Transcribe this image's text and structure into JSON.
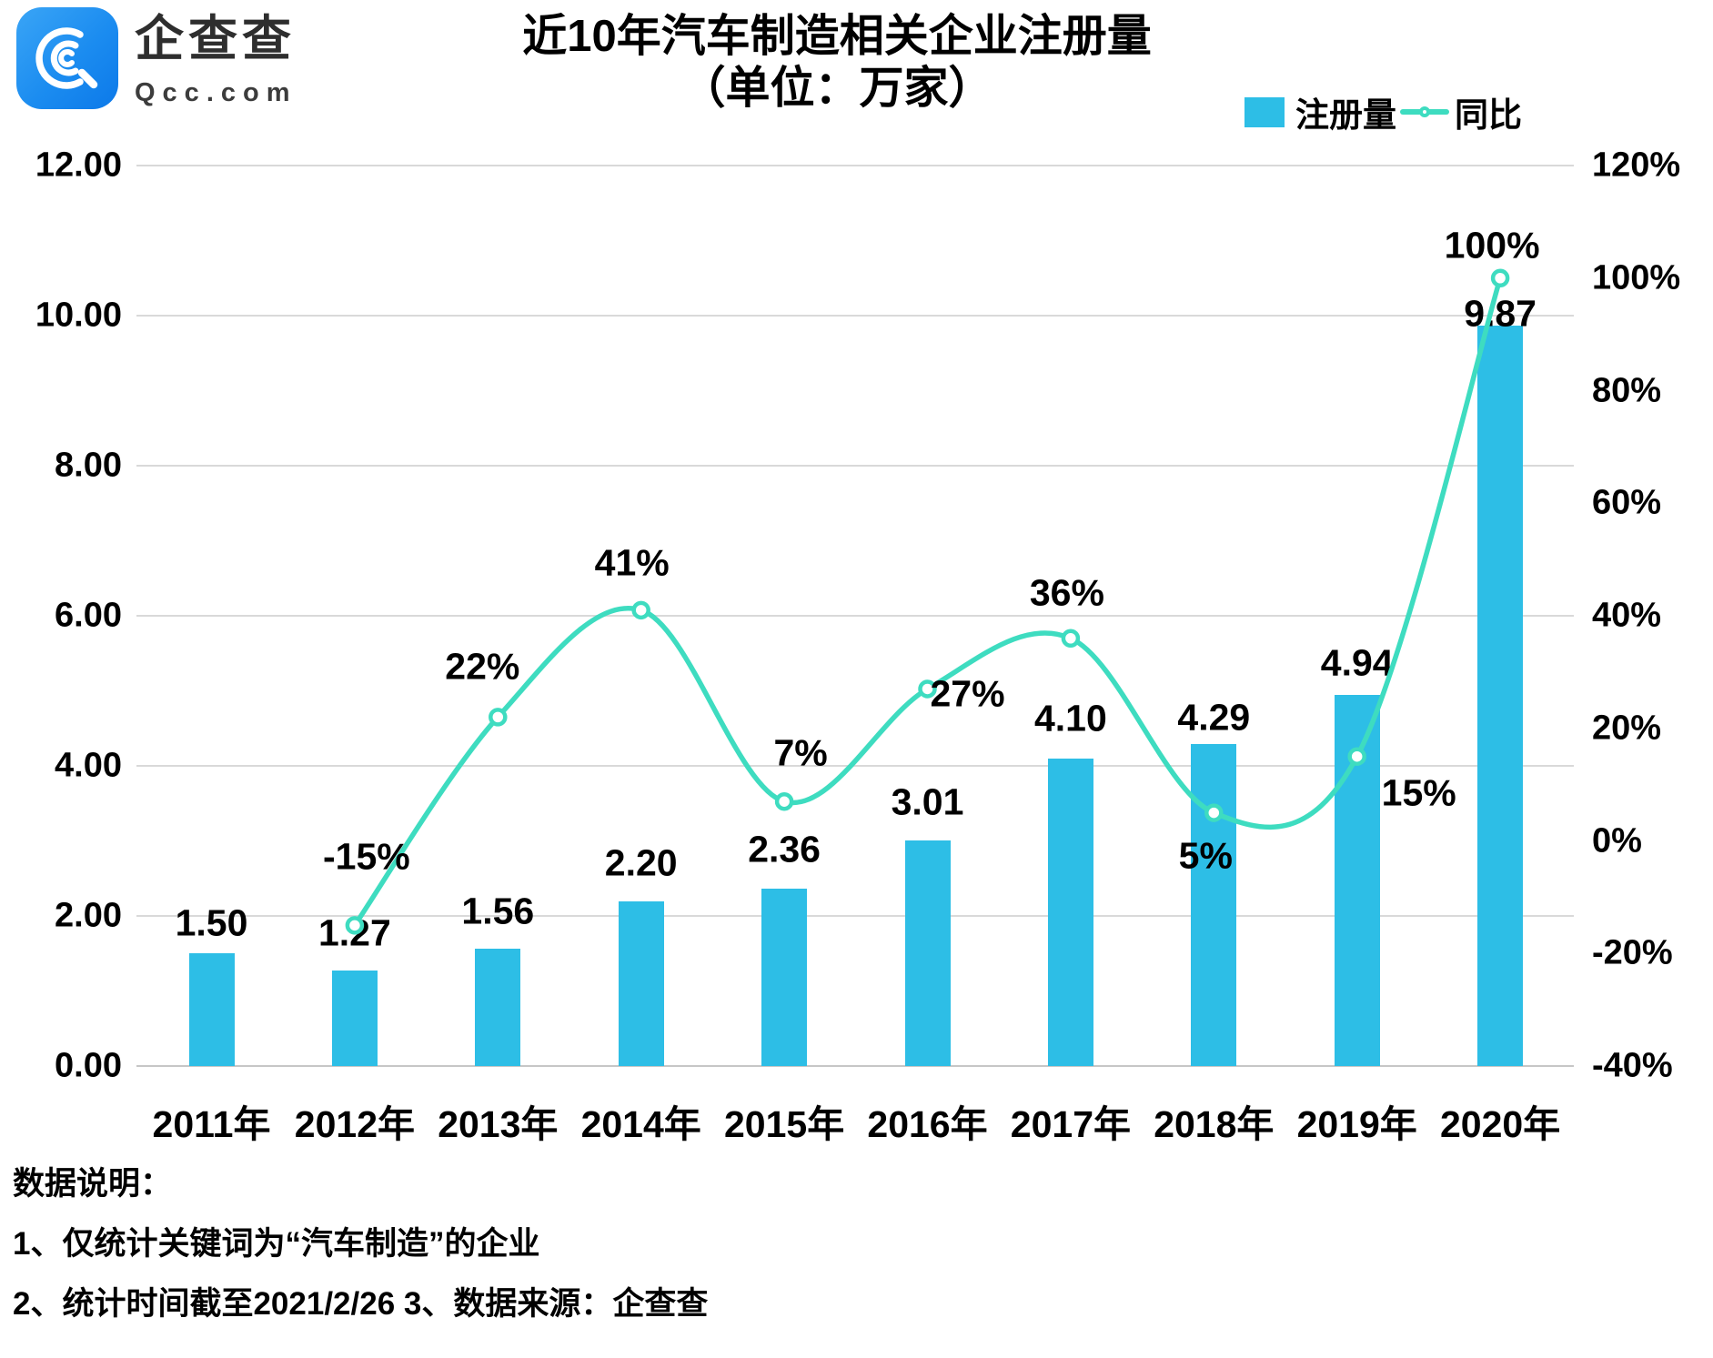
{
  "logo": {
    "brand_cn": "企查查",
    "brand_en": "Qcc.com"
  },
  "title": {
    "line1": "近10年汽车制造相关企业注册量",
    "line2": "（单位：万家）"
  },
  "notes": {
    "heading": "数据说明：",
    "line1": "1、仅统计关键词为“汽车制造”的企业",
    "line2": "2、统计时间截至2021/2/26 3、数据来源：企查查"
  },
  "colors": {
    "bar": "#2dbee6",
    "line": "#3edcc0",
    "grid": "#d9d9d9",
    "baseline": "#c6c6c6",
    "logo_blue": "#1b8cf0",
    "text": "#000000"
  },
  "chart_data": {
    "type": "bar+line",
    "title": "近10年汽车制造相关企业注册量（单位：万家）",
    "categories": [
      "2011年",
      "2012年",
      "2013年",
      "2014年",
      "2015年",
      "2016年",
      "2017年",
      "2018年",
      "2019年",
      "2020年"
    ],
    "series": [
      {
        "name": "注册量",
        "type": "bar",
        "axis": "left",
        "color": "#2dbee6",
        "values": [
          1.5,
          1.27,
          1.56,
          2.2,
          2.36,
          3.01,
          4.1,
          4.29,
          4.94,
          9.87
        ],
        "labels": [
          "1.50",
          "1.27",
          "1.56",
          "2.20",
          "2.36",
          "3.01",
          "4.10",
          "4.29",
          "4.94",
          "9.87"
        ],
        "label_dy": [
          -33,
          -41,
          -41,
          -42,
          -43,
          -42,
          -44,
          -29,
          -35,
          -13
        ]
      },
      {
        "name": "同比",
        "type": "line",
        "axis": "right",
        "color": "#3edcc0",
        "values": [
          null,
          -15,
          22,
          41,
          7,
          27,
          36,
          5,
          15,
          100
        ],
        "labels": [
          null,
          "-15%",
          "22%",
          "41%",
          "7%",
          "27%",
          "36%",
          "5%",
          "15%",
          "100%"
        ],
        "label_offsets": [
          null,
          [
            13,
            -75
          ],
          [
            -17,
            -55
          ],
          [
            -10,
            -52
          ],
          [
            18,
            -53
          ],
          [
            44,
            6
          ],
          [
            -4,
            -50
          ],
          [
            -9,
            47
          ],
          [
            68,
            40
          ],
          [
            -9,
            -36
          ]
        ]
      }
    ],
    "left_axis": {
      "min": 0,
      "max": 12,
      "step": 2,
      "labels": [
        "12.00",
        "10.00",
        "8.00",
        "6.00",
        "4.00",
        "2.00",
        "0.00"
      ]
    },
    "right_axis": {
      "min": -40,
      "max": 120,
      "step": 20,
      "labels": [
        "120%",
        "100%",
        "80%",
        "60%",
        "40%",
        "20%",
        "0%",
        "-20%",
        "-40%"
      ]
    },
    "grid": true,
    "legend_position": "top-right"
  }
}
